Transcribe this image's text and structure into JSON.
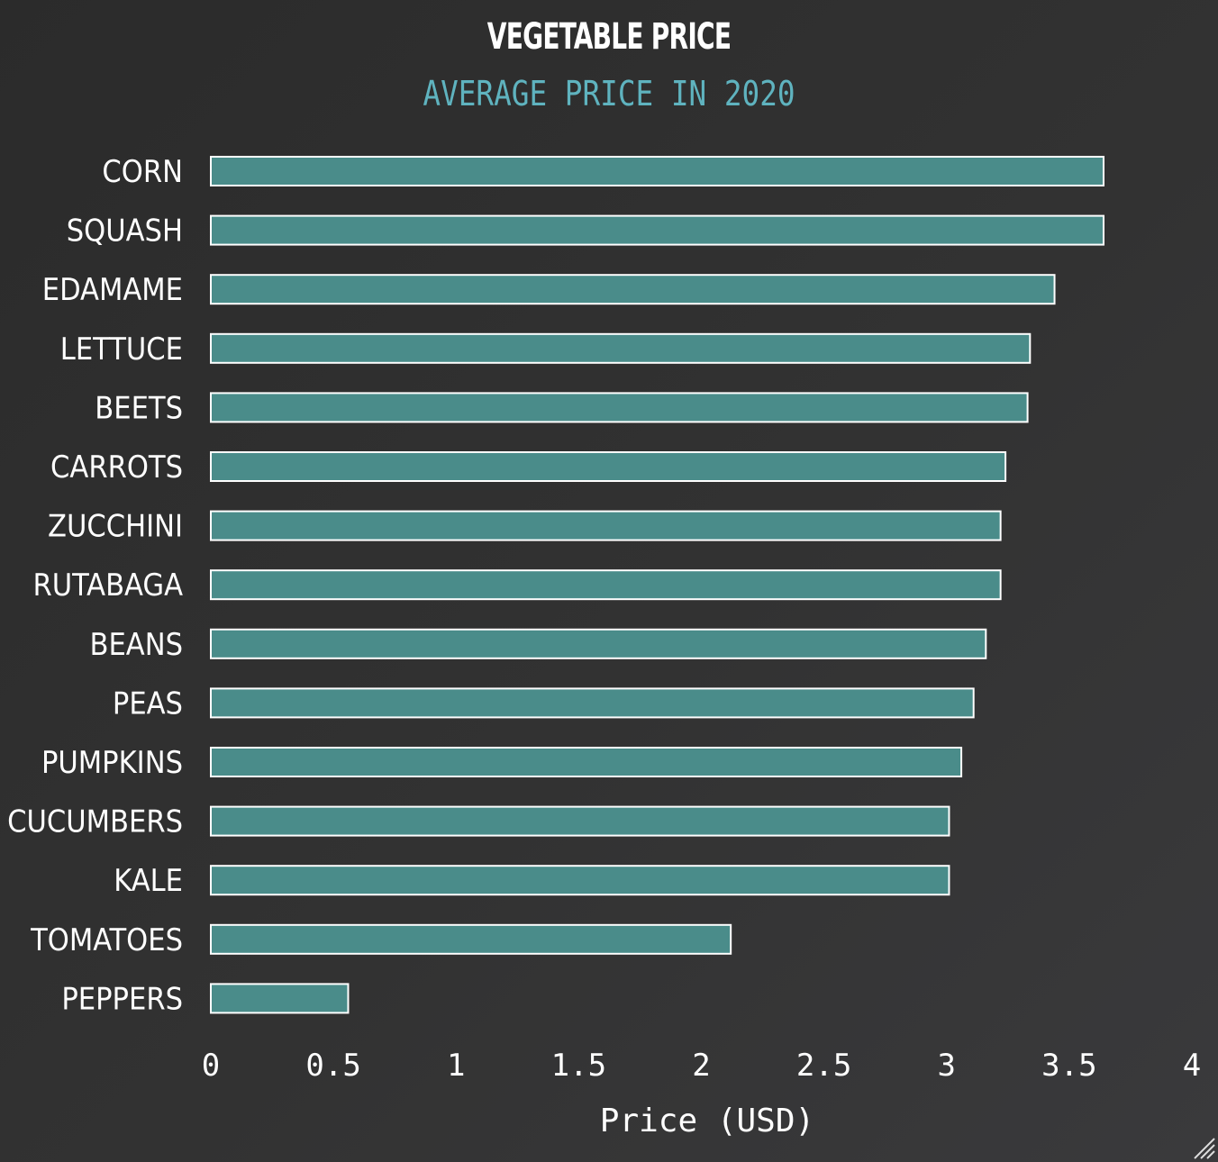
{
  "chart_data": {
    "type": "bar",
    "orientation": "horizontal",
    "title": "VEGETABLE PRICE",
    "subtitle": "AVERAGE PRICE IN 2020",
    "xlabel": "Price (USD)",
    "ylabel": "",
    "xlim": [
      0,
      4
    ],
    "xticks": [
      "0",
      "0.5",
      "1",
      "1.5",
      "2",
      "2.5",
      "3",
      "3.5",
      "4"
    ],
    "grid": false,
    "categories": [
      "CORN",
      "SQUASH",
      "EDAMAME",
      "LETTUCE",
      "BEETS",
      "CARROTS",
      "ZUCCHINI",
      "RUTABAGA",
      "BEANS",
      "PEAS",
      "PUMPKINS",
      "CUCUMBERS",
      "KALE",
      "TOMATOES",
      "PEPPERS"
    ],
    "values": [
      3.64,
      3.64,
      3.44,
      3.34,
      3.33,
      3.24,
      3.22,
      3.22,
      3.16,
      3.11,
      3.06,
      3.01,
      3.01,
      2.12,
      0.56
    ]
  },
  "colors": {
    "bar_fill": "#4a8c8a",
    "bar_stroke": "#ffffff",
    "subtitle": "#5fb3bf",
    "background": "#2f2f2f"
  }
}
